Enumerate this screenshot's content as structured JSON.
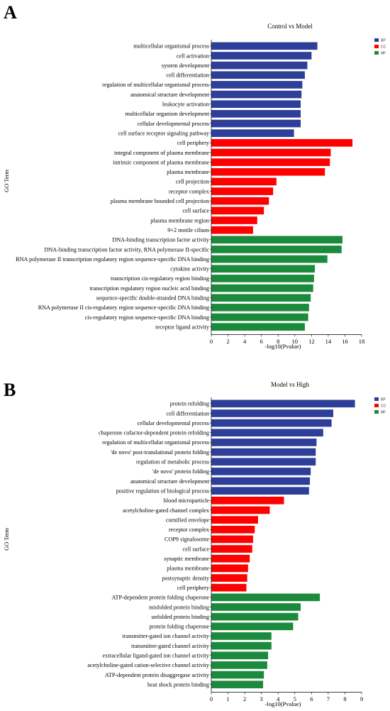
{
  "panels": [
    "A",
    "B"
  ],
  "legend": [
    {
      "name": "BP",
      "color": "#2e3f99"
    },
    {
      "name": "CC",
      "color": "#ff0000"
    },
    {
      "name": "MF",
      "color": "#1b8a3c"
    }
  ],
  "chart_data": [
    {
      "type": "bar",
      "orientation": "horizontal",
      "title": "Control vs Model",
      "xlabel": "-log10(Pvalue)",
      "ylabel": "GO Term",
      "xlim": [
        0,
        18
      ],
      "xticks": [
        "0",
        "2",
        "4",
        "6",
        "8",
        "10",
        "12",
        "14",
        "16",
        "18"
      ],
      "categories": [
        "multicellular organismal process",
        "cell activation",
        "system development",
        "cell differentiation",
        "regulation of multicellular organismal process",
        "anatomical structure development",
        "leukocyte activation",
        "multicellular organism development",
        "cellular developmental process",
        "cell surface receptor signaling pathway",
        "cell periphery",
        "integral component of plasma membrane",
        "intrinsic component of plasma membrane",
        "plasma membrane",
        "cell projection",
        "receptor complex",
        "plasma membrane bounded cell projection",
        "cell surface",
        "plasma membrane region",
        "9+2 motile cilium",
        "DNA-binding transcription factor activity",
        "DNA-binding transcription factor activity, RNA polymerase II-specific",
        "RNA polymerase II transcription regulatory region sequence-specific DNA binding",
        "cytokine activity",
        "transcription cis-regulatory region binding",
        "transcription regulatory region nucleic acid binding",
        "sequence-specific double-stranded DNA binding",
        "RNA polymerase II cis-regulatory region sequence-specific DNA binding",
        "cis-regulatory region sequence-specific DNA binding",
        "receptor ligand activity"
      ],
      "values": [
        12.7,
        12.0,
        11.5,
        11.2,
        10.9,
        10.8,
        10.7,
        10.7,
        10.7,
        9.9,
        16.9,
        14.3,
        14.2,
        13.6,
        7.8,
        7.4,
        6.9,
        6.3,
        5.5,
        5.0,
        15.7,
        15.6,
        13.9,
        12.4,
        12.3,
        12.2,
        11.9,
        11.7,
        11.6,
        11.2
      ],
      "groups": [
        "BP",
        "BP",
        "BP",
        "BP",
        "BP",
        "BP",
        "BP",
        "BP",
        "BP",
        "BP",
        "CC",
        "CC",
        "CC",
        "CC",
        "CC",
        "CC",
        "CC",
        "CC",
        "CC",
        "CC",
        "MF",
        "MF",
        "MF",
        "MF",
        "MF",
        "MF",
        "MF",
        "MF",
        "MF",
        "MF"
      ]
    },
    {
      "type": "bar",
      "orientation": "horizontal",
      "title": "Model vs High",
      "xlabel": "-log10(Pvalue)",
      "ylabel": "GO Term",
      "xlim": [
        0,
        9
      ],
      "xticks": [
        "0",
        "1",
        "2",
        "3",
        "4",
        "5",
        "6",
        "7",
        "8",
        "9"
      ],
      "categories": [
        "protein refolding",
        "cell differentiation",
        "cellular developmental process",
        "chaperone cofactor-dependent protein refolding",
        "regulation of multicellular organismal process",
        "'de novo' post-translational protein folding",
        "regulation of metabolic process",
        "'de novo' protein folding",
        "anatomical structure development",
        "positive regulation of biological process",
        "blood microparticle",
        "acetylcholine-gated channel complex",
        "cornified envelope",
        "receptor complex",
        "COP9 signalosome",
        "cell surface",
        "synaptic membrane",
        "plasma membrane",
        "postsynaptic density",
        "cell periphery",
        "ATP-dependent protein folding chaperone",
        "misfolded protein binding",
        "unfolded protein binding",
        "protein folding chaperone",
        "transmitter-gated ion channel activity",
        "transmitter-gated channel activity",
        "extracellular ligand-gated ion channel activity",
        "acetylcholine-gated cation-selective channel activity",
        "ATP-dependent protein disaggregase activity",
        "heat shock protein binding"
      ],
      "values": [
        8.6,
        7.3,
        7.2,
        6.7,
        6.3,
        6.25,
        6.25,
        5.95,
        5.9,
        5.85,
        4.35,
        3.5,
        2.8,
        2.6,
        2.5,
        2.45,
        2.3,
        2.2,
        2.15,
        2.1,
        6.5,
        5.35,
        5.2,
        4.9,
        3.6,
        3.6,
        3.4,
        3.35,
        3.15,
        3.1
      ],
      "groups": [
        "BP",
        "BP",
        "BP",
        "BP",
        "BP",
        "BP",
        "BP",
        "BP",
        "BP",
        "BP",
        "CC",
        "CC",
        "CC",
        "CC",
        "CC",
        "CC",
        "CC",
        "CC",
        "CC",
        "CC",
        "MF",
        "MF",
        "MF",
        "MF",
        "MF",
        "MF",
        "MF",
        "MF",
        "MF",
        "MF"
      ]
    }
  ]
}
